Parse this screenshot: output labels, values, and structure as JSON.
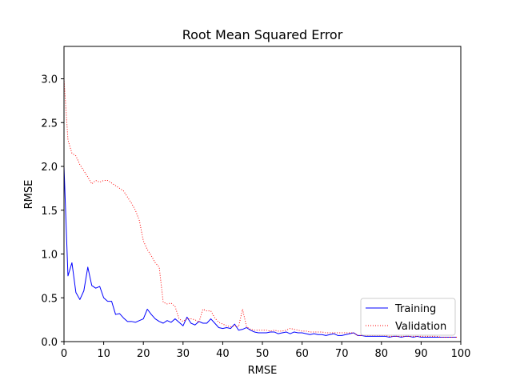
{
  "chart_data": {
    "type": "line",
    "title": "Root Mean Squared Error",
    "xlabel": "RMSE",
    "ylabel": "RMSE",
    "xlim": [
      0,
      100
    ],
    "ylim": [
      0,
      3.37
    ],
    "xticks": [
      "0",
      "10",
      "20",
      "30",
      "40",
      "50",
      "60",
      "70",
      "80",
      "90",
      "100"
    ],
    "yticks": [
      "0.0",
      "0.5",
      "1.0",
      "1.5",
      "2.0",
      "2.5",
      "3.0"
    ],
    "grid": false,
    "legend_position": "bottom-right",
    "series": [
      {
        "name": "Training",
        "color": "#0000ff",
        "style": "solid",
        "x": [
          0,
          1,
          2,
          3,
          4,
          5,
          6,
          7,
          8,
          9,
          10,
          11,
          12,
          13,
          14,
          15,
          16,
          17,
          18,
          19,
          20,
          21,
          22,
          23,
          24,
          25,
          26,
          27,
          28,
          29,
          30,
          31,
          32,
          33,
          34,
          35,
          36,
          37,
          38,
          39,
          40,
          41,
          42,
          43,
          44,
          45,
          46,
          47,
          48,
          49,
          50,
          51,
          52,
          53,
          54,
          55,
          56,
          57,
          58,
          59,
          60,
          61,
          62,
          63,
          64,
          65,
          66,
          67,
          68,
          69,
          70,
          71,
          72,
          73,
          74,
          75,
          76,
          77,
          78,
          79,
          80,
          81,
          82,
          83,
          84,
          85,
          86,
          87,
          88,
          89,
          90,
          91,
          92,
          93,
          94,
          95,
          96,
          97,
          98,
          99
        ],
        "values": [
          2.0,
          0.75,
          0.9,
          0.56,
          0.48,
          0.58,
          0.85,
          0.64,
          0.61,
          0.63,
          0.5,
          0.46,
          0.46,
          0.31,
          0.32,
          0.27,
          0.23,
          0.23,
          0.22,
          0.24,
          0.26,
          0.37,
          0.31,
          0.26,
          0.23,
          0.21,
          0.24,
          0.22,
          0.26,
          0.22,
          0.18,
          0.28,
          0.21,
          0.19,
          0.23,
          0.21,
          0.21,
          0.26,
          0.21,
          0.16,
          0.15,
          0.16,
          0.15,
          0.2,
          0.13,
          0.14,
          0.16,
          0.13,
          0.11,
          0.1,
          0.1,
          0.1,
          0.11,
          0.11,
          0.09,
          0.1,
          0.11,
          0.09,
          0.11,
          0.1,
          0.1,
          0.09,
          0.08,
          0.09,
          0.08,
          0.08,
          0.07,
          0.08,
          0.09,
          0.07,
          0.07,
          0.08,
          0.09,
          0.1,
          0.07,
          0.07,
          0.06,
          0.06,
          0.06,
          0.06,
          0.06,
          0.06,
          0.05,
          0.06,
          0.06,
          0.05,
          0.06,
          0.06,
          0.05,
          0.06,
          0.05,
          0.05,
          0.05,
          0.05,
          0.05,
          0.05,
          0.05,
          0.05,
          0.05,
          0.05
        ]
      },
      {
        "name": "Validation",
        "color": "#ff0000",
        "style": "dotted",
        "x": [
          0,
          1,
          2,
          3,
          4,
          5,
          6,
          7,
          8,
          9,
          10,
          11,
          12,
          13,
          14,
          15,
          16,
          17,
          18,
          19,
          20,
          21,
          22,
          23,
          24,
          25,
          26,
          27,
          28,
          29,
          30,
          31,
          32,
          33,
          34,
          35,
          36,
          37,
          38,
          39,
          40,
          41,
          42,
          43,
          44,
          45,
          46,
          47,
          48,
          49,
          50,
          51,
          52,
          53,
          54,
          55,
          56,
          57,
          58,
          59,
          60,
          61,
          62,
          63,
          64,
          65,
          66,
          67,
          68,
          69,
          70,
          71,
          72,
          73,
          74,
          75,
          76,
          77,
          78,
          79,
          80,
          81,
          82,
          83,
          84,
          85,
          86,
          87,
          88,
          89,
          90,
          91,
          92,
          93,
          94,
          95,
          96,
          97,
          98,
          99
        ],
        "values": [
          3.0,
          2.3,
          2.15,
          2.12,
          2.02,
          1.95,
          1.88,
          1.8,
          1.84,
          1.82,
          1.84,
          1.84,
          1.81,
          1.78,
          1.75,
          1.72,
          1.65,
          1.58,
          1.5,
          1.38,
          1.15,
          1.05,
          0.98,
          0.9,
          0.85,
          0.45,
          0.43,
          0.44,
          0.4,
          0.26,
          0.23,
          0.26,
          0.26,
          0.25,
          0.22,
          0.37,
          0.35,
          0.35,
          0.27,
          0.22,
          0.2,
          0.18,
          0.17,
          0.18,
          0.17,
          0.37,
          0.17,
          0.14,
          0.13,
          0.13,
          0.13,
          0.13,
          0.12,
          0.13,
          0.12,
          0.12,
          0.13,
          0.15,
          0.14,
          0.13,
          0.12,
          0.12,
          0.11,
          0.11,
          0.11,
          0.11,
          0.1,
          0.1,
          0.1,
          0.1,
          0.1,
          0.1,
          0.1,
          0.1,
          0.07,
          0.07,
          0.07,
          0.07,
          0.07,
          0.07,
          0.07,
          0.07,
          0.06,
          0.06,
          0.06,
          0.06,
          0.06,
          0.06,
          0.06,
          0.06,
          0.06,
          0.06,
          0.06,
          0.06,
          0.06,
          0.05,
          0.05,
          0.05,
          0.05,
          0.05
        ]
      }
    ]
  }
}
